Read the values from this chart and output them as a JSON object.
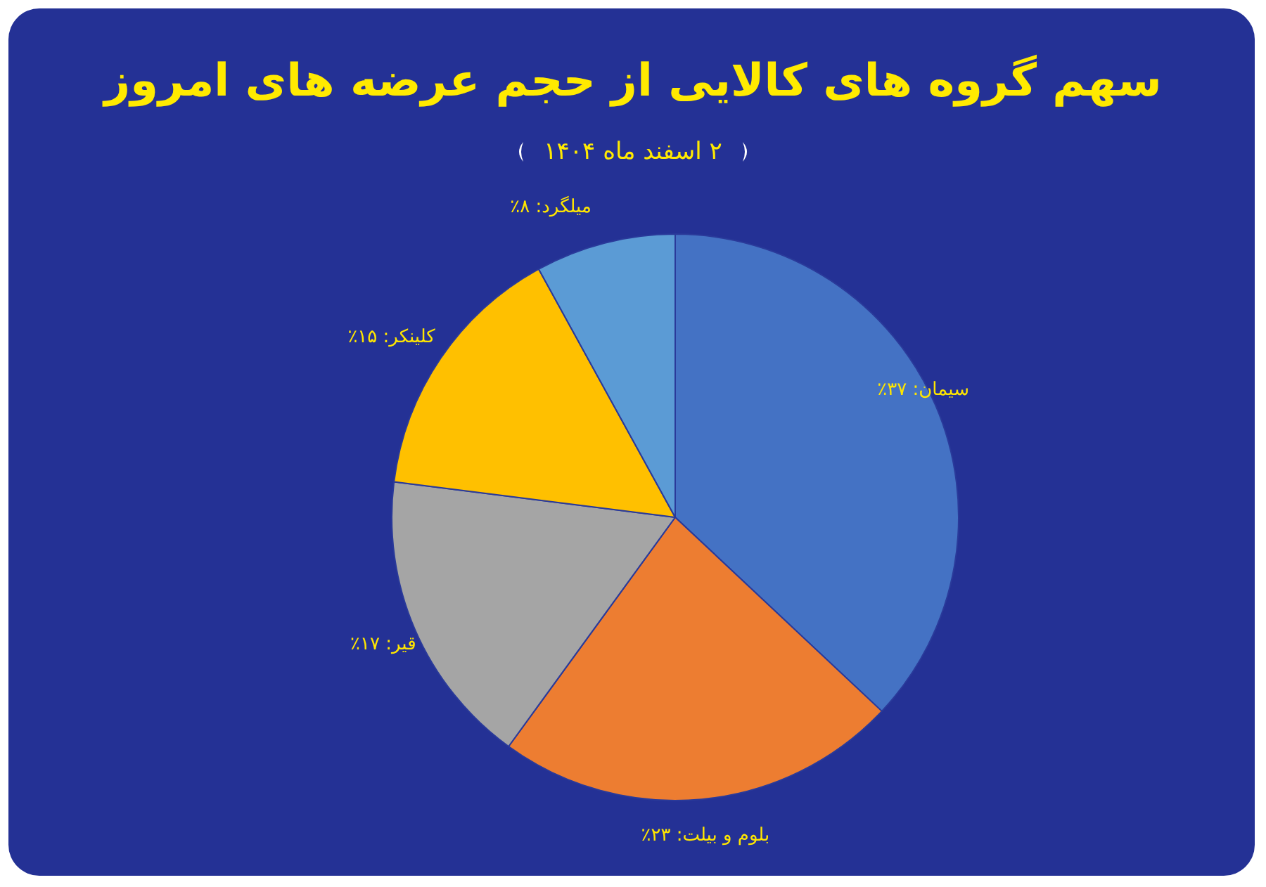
{
  "chart_data": {
    "type": "pie",
    "title": "سهم گروه های کالایی از حجم عرضه های امروز",
    "subtitle": "۲ اسفند ماه ۱۴۰۴",
    "categories": [
      "سیمان",
      "بلوم و بیلت",
      "قیر",
      "کلینکر",
      "میلگرد"
    ],
    "values": [
      37,
      23,
      17,
      15,
      8
    ],
    "value_labels": [
      "۳۷٪",
      "۲۳٪",
      "۱۷٪",
      "۱۵٪",
      "۸٪"
    ],
    "colors": [
      "#4472c4",
      "#ed7d31",
      "#a5a5a5",
      "#ffc000",
      "#5b9bd5"
    ],
    "legend": false
  }
}
